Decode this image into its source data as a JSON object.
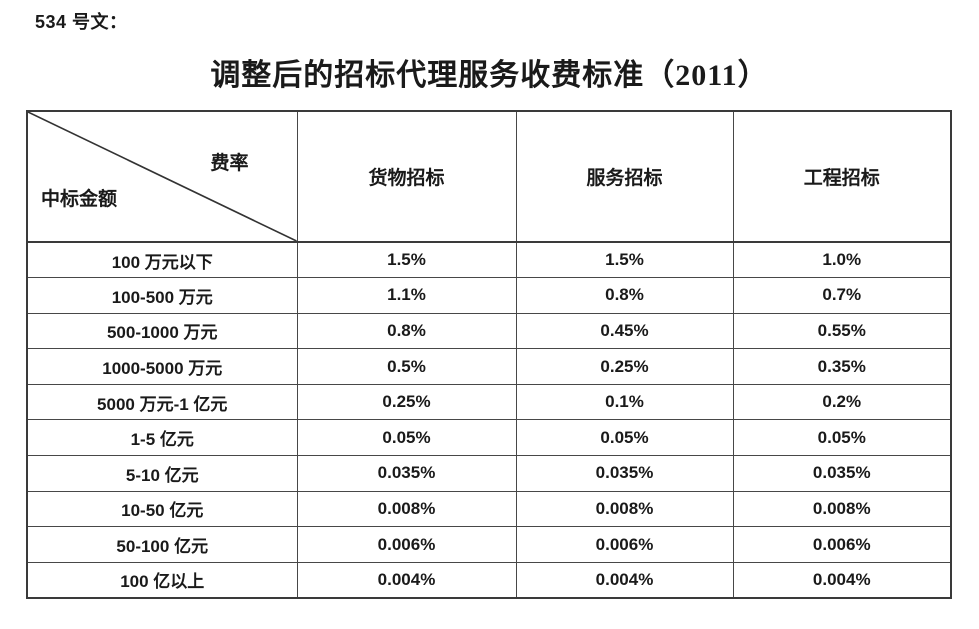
{
  "doc": {
    "doc_number": "534 号文：",
    "title": "调整后的招标代理服务收费标准（2011）"
  },
  "table": {
    "corner": {
      "top_right": "费率",
      "bottom_left": "中标金额"
    },
    "columns": [
      "货物招标",
      "服务招标",
      "工程招标"
    ],
    "rows": [
      {
        "label": "100 万元以下",
        "values": [
          "1.5%",
          "1.5%",
          "1.0%"
        ]
      },
      {
        "label": "100-500 万元",
        "values": [
          "1.1%",
          "0.8%",
          "0.7%"
        ]
      },
      {
        "label": "500-1000 万元",
        "values": [
          "0.8%",
          "0.45%",
          "0.55%"
        ]
      },
      {
        "label": "1000-5000 万元",
        "values": [
          "0.5%",
          "0.25%",
          "0.35%"
        ]
      },
      {
        "label": "5000 万元-1 亿元",
        "values": [
          "0.25%",
          "0.1%",
          "0.2%"
        ]
      },
      {
        "label": "1-5 亿元",
        "values": [
          "0.05%",
          "0.05%",
          "0.05%"
        ]
      },
      {
        "label": "5-10 亿元",
        "values": [
          "0.035%",
          "0.035%",
          "0.035%"
        ]
      },
      {
        "label": "10-50 亿元",
        "values": [
          "0.008%",
          "0.008%",
          "0.008%"
        ]
      },
      {
        "label": "50-100 亿元",
        "values": [
          "0.006%",
          "0.006%",
          "0.006%"
        ]
      },
      {
        "label": "100 亿以上",
        "values": [
          "0.004%",
          "0.004%",
          "0.004%"
        ]
      }
    ],
    "border_color": "#3a3a3a",
    "text_color": "#1a1a1a",
    "background_color": "#ffffff"
  }
}
